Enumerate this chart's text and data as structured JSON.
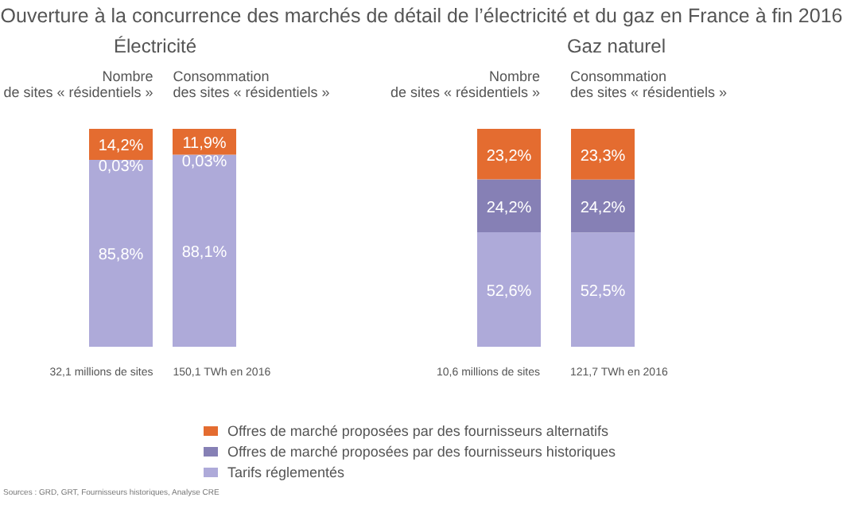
{
  "chart_data": [
    {
      "type": "bar",
      "title": "Ouverture à la concurrence des marchés de détail de l’électricité et du gaz en France à fin 2016",
      "subtitle": "Électricité",
      "categories": [
        "Nombre de sites « résidentiels »",
        "Consommation des sites « résidentiels »"
      ],
      "stacked": true,
      "legend": "bottom",
      "series": [
        {
          "name": "Tarifs réglementés",
          "color": "#aeaad9",
          "values": [
            85.8,
            88.1
          ],
          "value_labels": [
            "85,8%",
            "88,1%"
          ]
        },
        {
          "name": "Offres de marché proposées par des fournisseurs historiques",
          "color": "#8680b5",
          "values": [
            0.03,
            0.03
          ],
          "value_labels": [
            "0,03%",
            "0,03%"
          ]
        },
        {
          "name": "Offres de marché proposées par des fournisseurs alternatifs",
          "color": "#e46c30",
          "values": [
            14.2,
            11.9
          ],
          "value_labels": [
            "14,2%",
            "11,9%"
          ]
        }
      ],
      "annotations": [
        "32,1 millions de sites",
        "150,1 TWh en 2016"
      ]
    },
    {
      "type": "bar",
      "title": "Gaz naturel",
      "categories": [
        "Nombre de sites « résidentiels »",
        "Consommation des sites « résidentiels »"
      ],
      "stacked": true,
      "legend": "bottom",
      "series": [
        {
          "name": "Tarifs réglementés",
          "color": "#aeaad9",
          "values": [
            52.6,
            52.5
          ],
          "value_labels": [
            "52,6%",
            "52,5%"
          ]
        },
        {
          "name": "Offres de marché proposées par des fournisseurs historiques",
          "color": "#8680b5",
          "values": [
            24.2,
            24.2
          ],
          "value_labels": [
            "24,2%",
            "24,2%"
          ]
        },
        {
          "name": "Offres de marché proposées par des fournisseurs alternatifs",
          "color": "#e46c30",
          "values": [
            23.2,
            23.3
          ],
          "value_labels": [
            "23,2%",
            "23,3%"
          ]
        }
      ],
      "annotations": [
        "10,6 millions de sites",
        "121,7 TWh en 2016",
        "Sources : GRD, GRT, Fournisseurs historiques, Analyse CRE"
      ]
    }
  ]
}
